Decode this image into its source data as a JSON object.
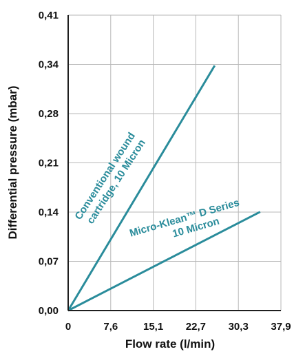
{
  "chart_data": {
    "type": "line",
    "xlabel": "Flow rate (l/min)",
    "ylabel": "Differential pressure (mbar)",
    "x_ticks": [
      "0",
      "7,6",
      "15,1",
      "22,7",
      "30,3",
      "37,9"
    ],
    "y_ticks": [
      "0,00",
      "0,07",
      "0,14",
      "0,21",
      "0,28",
      "0,34",
      "0,41"
    ],
    "xlim": [
      0,
      37.9
    ],
    "ylim": [
      0,
      0.41
    ],
    "grid": true,
    "legend": "none",
    "series_color": "#2a8c9b",
    "series": [
      {
        "label_lines": [
          "Conventional wound",
          "cartridge, 10 Micron"
        ],
        "x": [
          0,
          26.1
        ],
        "y": [
          0,
          0.34
        ]
      },
      {
        "label_lines": [
          "Micro-Klean™ D Series",
          "10 Micron"
        ],
        "x": [
          0,
          34.2
        ],
        "y": [
          0,
          0.137
        ]
      }
    ]
  }
}
